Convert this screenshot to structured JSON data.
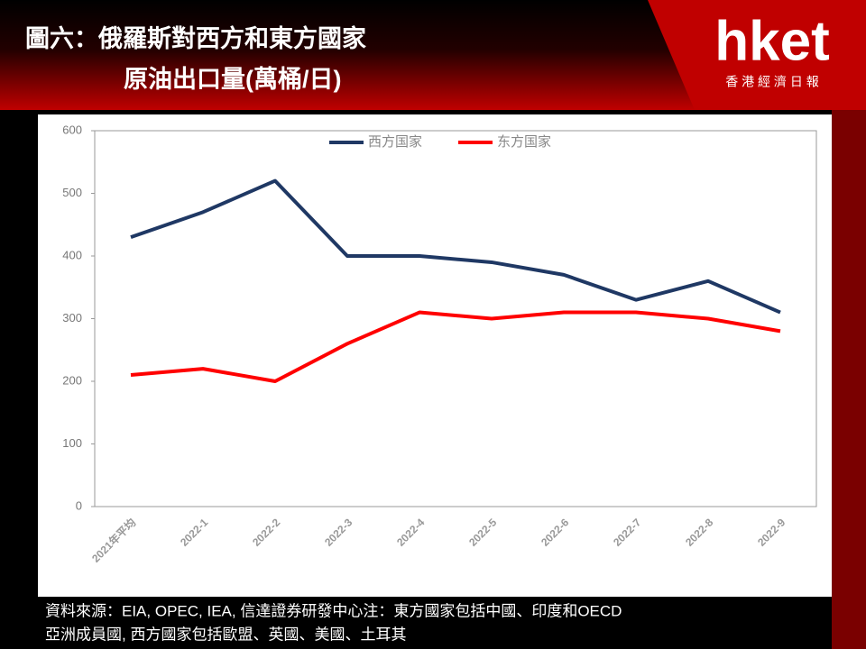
{
  "header": {
    "title": [
      "圖六：俄羅斯對西方和東方國家",
      "原油出口量(萬桶/日)"
    ],
    "logo": "hket",
    "logo_subtitle": "香 港 經 濟 日 報"
  },
  "chart_data": {
    "type": "line",
    "categories": [
      "2021年平均",
      "2022-1",
      "2022-2",
      "2022-3",
      "2022-4",
      "2022-5",
      "2022-6",
      "2022-7",
      "2022-8",
      "2022-9"
    ],
    "series": [
      {
        "name": "西方国家",
        "color": "#1f3864",
        "values": [
          430,
          470,
          520,
          400,
          400,
          390,
          370,
          330,
          360,
          310
        ]
      },
      {
        "name": "东方国家",
        "color": "#ff0000",
        "values": [
          210,
          220,
          200,
          260,
          310,
          300,
          310,
          310,
          300,
          280
        ]
      }
    ],
    "ylim": [
      0,
      600
    ],
    "yticks": [
      0,
      100,
      200,
      300,
      400,
      500,
      600
    ],
    "legend": "top"
  },
  "footer": {
    "lines": [
      "資料來源：EIA, OPEC, IEA, 信達證券研發中心注：東方國家包括中國、印度和OECD",
      "亞洲成員國, 西方國家包括歐盟、英國、美國、土耳其"
    ]
  }
}
